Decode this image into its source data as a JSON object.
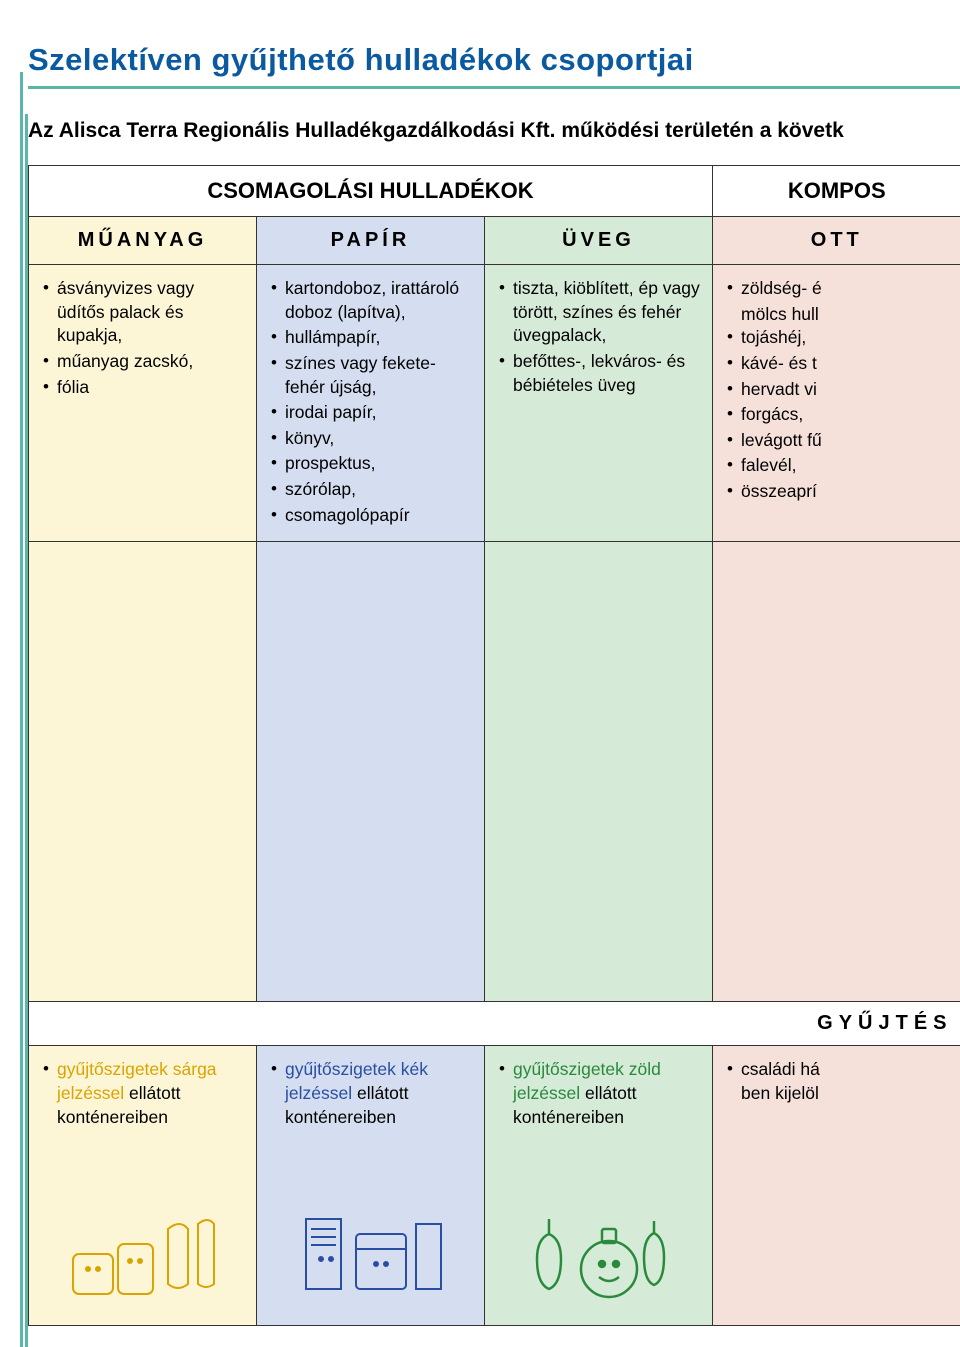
{
  "title": "Szelektíven gyűjthető hulladékok csoportjai",
  "intro": "Az Alisca Terra Regionális Hulladékgazdálkodási Kft. működési területén a követk",
  "headers": {
    "packaging": "CSOMAGOLÁSI HULLADÉKOK",
    "compost": "KOMPOS"
  },
  "cols": {
    "plastic": "MŰANYAG",
    "paper": "PAPÍR",
    "glass": "ÜVEG",
    "home": "OTT"
  },
  "items": {
    "plastic": [
      "ásványvizes vagy üdítős palack és kupakja,",
      "műanyag zacskó,",
      "fólia"
    ],
    "paper": [
      "kartondoboz, irattároló doboz (lapítva),",
      "hullámpapír,",
      "színes vagy fekete-fehér újság,",
      "irodai papír,",
      "könyv,",
      "prospektus,",
      "szórólap,",
      "csomagolópapír"
    ],
    "glass": [
      "tiszta, kiöblített, ép vagy törött, színes és fehér üvegpalack,",
      "befőttes-, lekváros- és bébiételes üveg"
    ],
    "home": [
      "zöldség- é",
      "mölcs hull",
      "tojáshéj,",
      "kávé- és t",
      "hervadt vi",
      "forgács,",
      "levágott fű",
      "falevél,",
      "összeaprí"
    ]
  },
  "collect_header": "GYŰJTÉS",
  "collect": {
    "plastic": {
      "colored": "gyűjtőszigetek sárga jelzéssel",
      "rest": " ellátott konténereiben"
    },
    "paper": {
      "colored": "gyűjtőszigetek kék jelzéssel",
      "rest": " ellátott konténereiben"
    },
    "glass": {
      "colored": "gyűjtőszigetek zöld jelzéssel",
      "rest": " ellátott konténereiben"
    },
    "home": {
      "rest": "családi há\nben kijelöl"
    }
  },
  "colors": {
    "brand_blue": "#0b5aa0",
    "accent_teal": "#58b7a8",
    "bg_yellow": "#fdf6d6",
    "bg_blue": "#d4def0",
    "bg_green": "#d6ead8",
    "bg_pink": "#f5e0da",
    "text_yellow": "#d9a400",
    "text_blue": "#2a4fa2",
    "text_green": "#2a8a3c"
  },
  "home_first_indent_index": 1
}
